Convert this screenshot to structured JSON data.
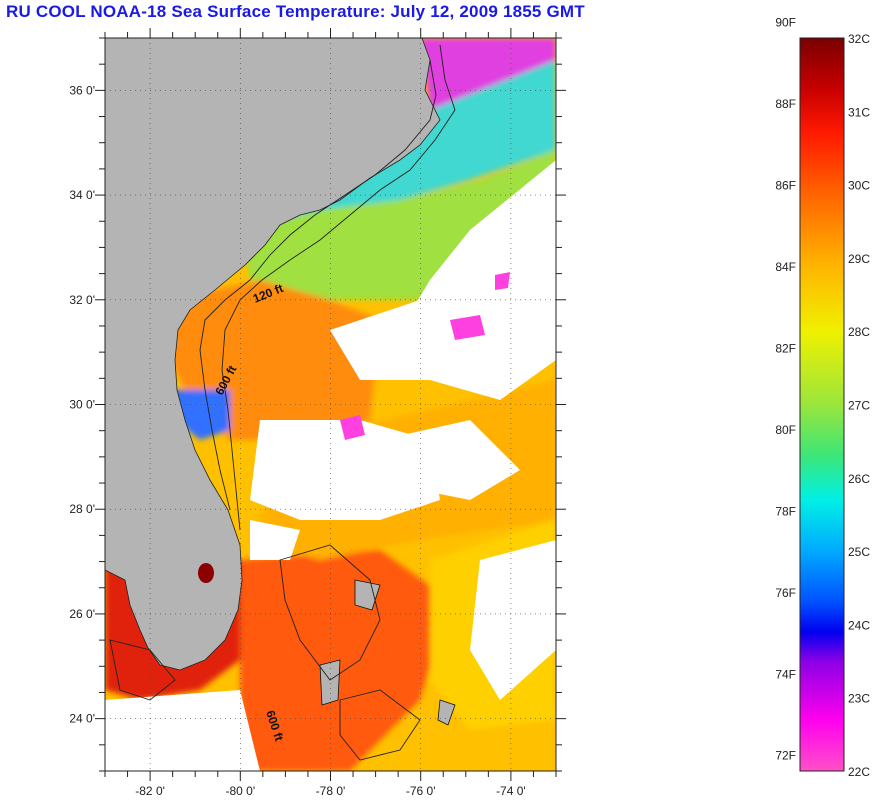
{
  "header": {
    "title": "RU COOL  NOAA-18  Sea Surface Temperature:  July 12, 2009 1855 GMT"
  },
  "map": {
    "lon_range": [
      -83,
      -73
    ],
    "lat_range": [
      23,
      37
    ],
    "lon_ticks": [
      {
        "value": -82,
        "label": "-82 0'"
      },
      {
        "value": -80,
        "label": "-80 0'"
      },
      {
        "value": -78,
        "label": "-78 0'"
      },
      {
        "value": -76,
        "label": "-76 0'"
      },
      {
        "value": -74,
        "label": "-74 0'"
      }
    ],
    "lat_ticks": [
      {
        "value": 24,
        "label": "24 0'"
      },
      {
        "value": 26,
        "label": "26 0'"
      },
      {
        "value": 28,
        "label": "28 0'"
      },
      {
        "value": 30,
        "label": "30 0'"
      },
      {
        "value": 32,
        "label": "32 0'"
      },
      {
        "value": 34,
        "label": "34 0'"
      },
      {
        "value": 36,
        "label": "36 0'"
      }
    ],
    "contour_labels": [
      {
        "text": "120 ft"
      },
      {
        "text": "600 ft"
      },
      {
        "text": "600 ft"
      }
    ],
    "colors": {
      "land": "#b4b4b4",
      "cloud": "#ffffff",
      "grid": "#444444"
    }
  },
  "colorbar": {
    "f_labels": [
      "90F",
      "88F",
      "86F",
      "84F",
      "82F",
      "80F",
      "78F",
      "76F",
      "74F",
      "72F"
    ],
    "c_labels": [
      "32C",
      "31C",
      "30C",
      "29C",
      "28C",
      "27C",
      "26C",
      "25C",
      "24C",
      "23C",
      "22C"
    ],
    "range_c": [
      22,
      32
    ]
  }
}
